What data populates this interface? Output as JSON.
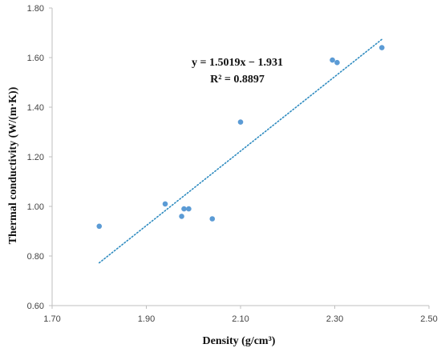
{
  "chart_data": {
    "type": "scatter",
    "xlabel": "Density (g/cm³)",
    "ylabel": "Thermal conductivity (W/(m·K))",
    "xlim": [
      1.7,
      2.5
    ],
    "ylim": [
      0.6,
      1.8
    ],
    "x_ticks": [
      "1.70",
      "1.90",
      "2.10",
      "2.30",
      "2.50"
    ],
    "y_ticks": [
      "0.60",
      "0.80",
      "1.00",
      "1.20",
      "1.40",
      "1.60",
      "1.80"
    ],
    "grid": false,
    "series": [
      {
        "points": [
          {
            "x": 1.8,
            "y": 0.92
          },
          {
            "x": 1.94,
            "y": 1.01
          },
          {
            "x": 1.975,
            "y": 0.96
          },
          {
            "x": 1.98,
            "y": 0.99
          },
          {
            "x": 1.99,
            "y": 0.99
          },
          {
            "x": 2.04,
            "y": 0.95
          },
          {
            "x": 2.1,
            "y": 1.34
          },
          {
            "x": 2.295,
            "y": 1.59
          },
          {
            "x": 2.305,
            "y": 1.58
          },
          {
            "x": 2.4,
            "y": 1.64
          }
        ]
      }
    ],
    "trendline": {
      "type": "linear",
      "slope": 1.5019,
      "intercept": -1.931,
      "x_range": [
        1.8,
        2.4
      ],
      "equation": "y = 1.5019x − 1.931",
      "r_squared": "R² = 0.8897"
    },
    "colors": {
      "points": "#5b9bd5",
      "trendline": "#2e8bc0",
      "axis": "#bfbfbf"
    }
  }
}
